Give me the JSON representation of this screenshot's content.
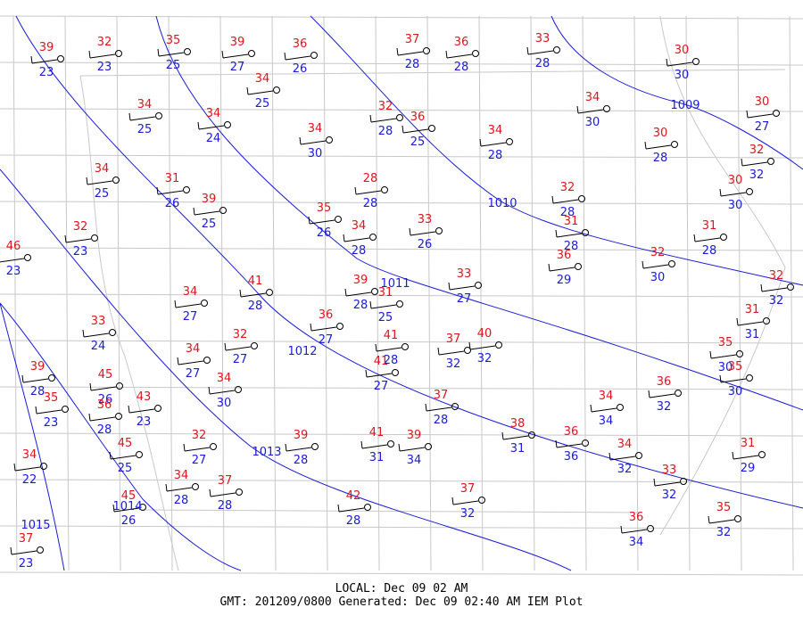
{
  "stations": [
    {
      "temp": 39,
      "dewpoint": 23
    },
    {
      "temp": 32,
      "dewpoint": 23
    },
    {
      "temp": 35,
      "dewpoint": 25
    },
    {
      "temp": 39,
      "dewpoint": 27
    },
    {
      "temp": 36,
      "dewpoint": 26
    },
    {
      "temp": 37,
      "dewpoint": 28
    },
    {
      "temp": 36,
      "dewpoint": 28
    },
    {
      "temp": 33,
      "dewpoint": 28
    },
    {
      "temp": 30,
      "dewpoint": 30
    },
    {
      "temp": 34,
      "dewpoint": 25
    },
    {
      "temp": 34,
      "dewpoint": 25
    },
    {
      "temp": 34,
      "dewpoint": 24
    },
    {
      "temp": 34,
      "dewpoint": 30
    },
    {
      "temp": 30,
      "dewpoint": 27
    },
    {
      "temp": 32,
      "dewpoint": 28
    },
    {
      "temp": 36,
      "dewpoint": 25
    },
    {
      "temp": 34,
      "dewpoint": 30
    },
    {
      "temp": 34,
      "dewpoint": 28
    },
    {
      "temp": 30,
      "dewpoint": 28
    },
    {
      "temp": 32,
      "dewpoint": 32
    },
    {
      "temp": 34,
      "dewpoint": 25
    },
    {
      "temp": 28,
      "dewpoint": 28
    },
    {
      "temp": 31,
      "dewpoint": 26
    },
    {
      "temp": 30,
      "dewpoint": 30
    },
    {
      "temp": 39,
      "dewpoint": 25
    },
    {
      "temp": 32,
      "dewpoint": 28
    },
    {
      "temp": 35,
      "dewpoint": 26
    },
    {
      "temp": 33,
      "dewpoint": 26
    },
    {
      "temp": 34,
      "dewpoint": 28
    },
    {
      "temp": 31,
      "dewpoint": 28
    },
    {
      "temp": 31,
      "dewpoint": 28
    },
    {
      "temp": 32,
      "dewpoint": 23
    },
    {
      "temp": 46,
      "dewpoint": 23
    },
    {
      "temp": 36,
      "dewpoint": 29
    },
    {
      "temp": 32,
      "dewpoint": 30
    },
    {
      "temp": 32,
      "dewpoint": 32
    },
    {
      "temp": 33,
      "dewpoint": 27
    },
    {
      "temp": 41,
      "dewpoint": 28
    },
    {
      "temp": 39,
      "dewpoint": 28
    },
    {
      "temp": 31,
      "dewpoint": 25
    },
    {
      "temp": 34,
      "dewpoint": 27
    },
    {
      "temp": 31,
      "dewpoint": 31
    },
    {
      "temp": 33,
      "dewpoint": 24
    },
    {
      "temp": 36,
      "dewpoint": 27
    },
    {
      "temp": 32,
      "dewpoint": 27
    },
    {
      "temp": 41,
      "dewpoint": 28
    },
    {
      "temp": 37,
      "dewpoint": 32
    },
    {
      "temp": 40,
      "dewpoint": 32
    },
    {
      "temp": 34,
      "dewpoint": 27
    },
    {
      "temp": 35,
      "dewpoint": 30
    },
    {
      "temp": 39,
      "dewpoint": 28
    },
    {
      "temp": 41,
      "dewpoint": 27
    },
    {
      "temp": 35,
      "dewpoint": 30
    },
    {
      "temp": 45,
      "dewpoint": 26
    },
    {
      "temp": 34,
      "dewpoint": 30
    },
    {
      "temp": 36,
      "dewpoint": 32
    },
    {
      "temp": 35,
      "dewpoint": 23
    },
    {
      "temp": 36,
      "dewpoint": 28
    },
    {
      "temp": 43,
      "dewpoint": 23
    },
    {
      "temp": 37,
      "dewpoint": 28
    },
    {
      "temp": 34,
      "dewpoint": 34
    },
    {
      "temp": 38,
      "dewpoint": 31
    },
    {
      "temp": 36,
      "dewpoint": 36
    },
    {
      "temp": 31,
      "dewpoint": 29
    },
    {
      "temp": 32,
      "dewpoint": 27
    },
    {
      "temp": 39,
      "dewpoint": 28
    },
    {
      "temp": 41,
      "dewpoint": 31
    },
    {
      "temp": 39,
      "dewpoint": 34
    },
    {
      "temp": 45,
      "dewpoint": 25
    },
    {
      "temp": 34,
      "dewpoint": 32
    },
    {
      "temp": 34,
      "dewpoint": 22
    },
    {
      "temp": 33,
      "dewpoint": 32
    },
    {
      "temp": 34,
      "dewpoint": 28
    },
    {
      "temp": 37,
      "dewpoint": 28
    },
    {
      "temp": 37,
      "dewpoint": 32
    },
    {
      "temp": 45,
      "dewpoint": 26
    },
    {
      "temp": 42,
      "dewpoint": 28
    },
    {
      "temp": 35,
      "dewpoint": 32
    },
    {
      "temp": 36,
      "dewpoint": 34
    },
    {
      "temp": 37,
      "dewpoint": 23
    }
  ],
  "isobars": [
    1009,
    1010,
    1011,
    1012,
    1013,
    1014,
    1015
  ],
  "footer": {
    "local": "LOCAL: Dec 09 02 AM",
    "gmt": "GMT: 201209/0800 Generated: Dec 09 02:40 AM IEM Plot"
  }
}
